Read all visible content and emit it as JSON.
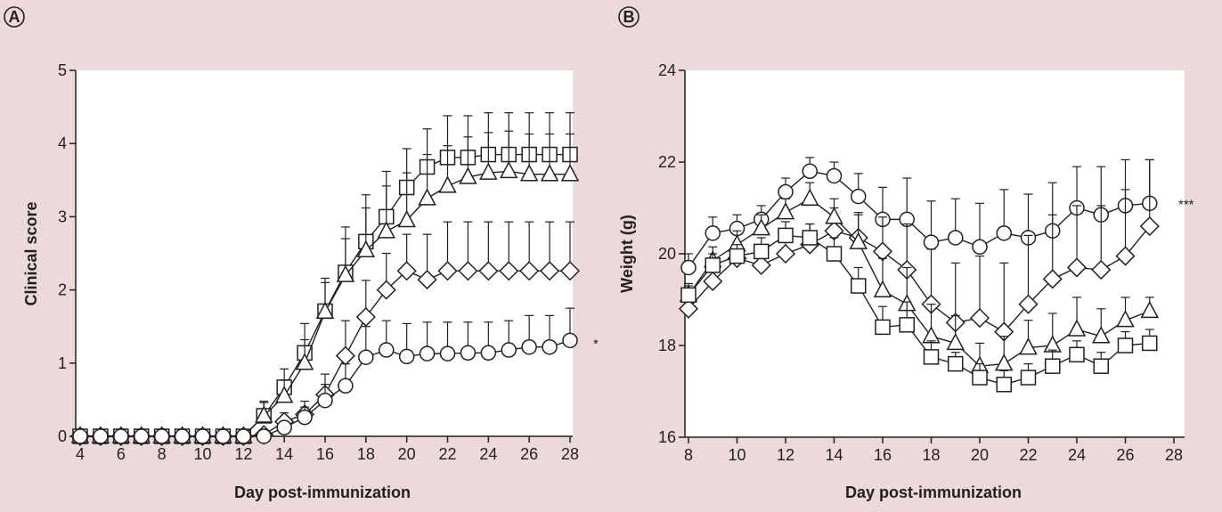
{
  "colors": {
    "background": "#ecd9d9",
    "plot_area": "#ffffff",
    "ink": "#231f20"
  },
  "chart_data": [
    {
      "panel": "A",
      "type": "line",
      "xlabel": "Day post-immunization",
      "ylabel": "Clinical score",
      "xlim": [
        4,
        28
      ],
      "ylim": [
        0,
        5
      ],
      "xticks": [
        4,
        6,
        8,
        10,
        12,
        14,
        16,
        18,
        20,
        22,
        24,
        26,
        28
      ],
      "yticks": [
        0,
        1,
        2,
        3,
        4,
        5
      ],
      "significance": "*",
      "significance_y": 1.28,
      "series": [
        {
          "marker": "square",
          "x": [
            4,
            5,
            6,
            7,
            8,
            9,
            10,
            11,
            12,
            13,
            14,
            15,
            16,
            17,
            18,
            19,
            20,
            21,
            22,
            23,
            24,
            25,
            26,
            27,
            28
          ],
          "y": [
            0,
            0,
            0,
            0,
            0,
            0,
            0,
            0,
            0,
            0.28,
            0.67,
            1.14,
            1.71,
            2.24,
            2.66,
            3.0,
            3.4,
            3.68,
            3.81,
            3.81,
            3.85,
            3.85,
            3.85,
            3.85,
            3.85
          ],
          "err": [
            0,
            0,
            0,
            0,
            0,
            0,
            0,
            0,
            0,
            0.2,
            0.25,
            0.4,
            0.45,
            0.62,
            0.64,
            0.62,
            0.53,
            0.52,
            0.57,
            0.57,
            0.57,
            0.57,
            0.57,
            0.57,
            0.57
          ]
        },
        {
          "marker": "triangle",
          "x": [
            4,
            5,
            6,
            7,
            8,
            9,
            10,
            11,
            12,
            13,
            14,
            15,
            16,
            17,
            18,
            19,
            20,
            21,
            22,
            23,
            24,
            25,
            26,
            27,
            28
          ],
          "y": [
            0,
            0,
            0,
            0,
            0,
            0,
            0,
            0,
            0,
            0.28,
            0.55,
            1.0,
            1.7,
            2.2,
            2.54,
            2.8,
            2.95,
            3.25,
            3.42,
            3.54,
            3.6,
            3.62,
            3.58,
            3.58,
            3.58
          ],
          "err": [
            0,
            0,
            0,
            0,
            0,
            0,
            0,
            0,
            0,
            0.18,
            0.22,
            0.32,
            0.4,
            0.5,
            0.58,
            0.62,
            0.65,
            0.6,
            0.55,
            0.55,
            0.55,
            0.55,
            0.55,
            0.55,
            0.55
          ]
        },
        {
          "marker": "diamond",
          "x": [
            4,
            5,
            6,
            7,
            8,
            9,
            10,
            11,
            12,
            13,
            14,
            15,
            16,
            17,
            18,
            19,
            20,
            21,
            22,
            23,
            24,
            25,
            26,
            27,
            28
          ],
          "y": [
            0,
            0,
            0,
            0,
            0,
            0,
            0,
            0,
            0,
            0.02,
            0.2,
            0.3,
            0.57,
            1.1,
            1.63,
            2.0,
            2.26,
            2.14,
            2.26,
            2.26,
            2.26,
            2.26,
            2.26,
            2.26,
            2.26
          ],
          "err": [
            0,
            0,
            0,
            0,
            0,
            0,
            0,
            0,
            0,
            0.03,
            0.12,
            0.18,
            0.28,
            0.48,
            0.5,
            0.5,
            0.5,
            0.62,
            0.67,
            0.67,
            0.67,
            0.67,
            0.67,
            0.67,
            0.67
          ]
        },
        {
          "marker": "circle",
          "x": [
            4,
            5,
            6,
            7,
            8,
            9,
            10,
            11,
            12,
            13,
            14,
            15,
            16,
            17,
            18,
            19,
            20,
            21,
            22,
            23,
            24,
            25,
            26,
            27,
            28
          ],
          "y": [
            0,
            0,
            0,
            0,
            0,
            0,
            0,
            0,
            0,
            0,
            0.12,
            0.26,
            0.49,
            0.69,
            1.08,
            1.18,
            1.09,
            1.13,
            1.13,
            1.14,
            1.14,
            1.18,
            1.22,
            1.22,
            1.31
          ],
          "err": [
            0,
            0,
            0,
            0,
            0,
            0,
            0,
            0,
            0,
            0,
            0.08,
            0.14,
            0.22,
            0.3,
            0.42,
            0.4,
            0.45,
            0.43,
            0.43,
            0.42,
            0.42,
            0.4,
            0.43,
            0.43,
            0.44
          ]
        }
      ]
    },
    {
      "panel": "B",
      "type": "line",
      "xlabel": "Day post-immunization",
      "ylabel": "Weight (g)",
      "xlim": [
        8,
        28
      ],
      "ylim": [
        16,
        24
      ],
      "xticks": [
        8,
        10,
        12,
        14,
        16,
        18,
        20,
        22,
        24,
        26,
        28
      ],
      "yticks": [
        16,
        18,
        20,
        22,
        24
      ],
      "significance": "***",
      "significance_y": 21.1,
      "series": [
        {
          "marker": "circle",
          "x": [
            8,
            9,
            10,
            11,
            12,
            13,
            14,
            15,
            16,
            17,
            18,
            19,
            20,
            21,
            22,
            23,
            24,
            25,
            26,
            27
          ],
          "y": [
            19.7,
            20.45,
            20.55,
            20.75,
            21.35,
            21.8,
            21.7,
            21.25,
            20.75,
            20.75,
            20.25,
            20.35,
            20.15,
            20.45,
            20.35,
            20.5,
            21.0,
            20.85,
            21.05,
            21.1
          ],
          "err": [
            0.3,
            0.35,
            0.3,
            0.3,
            0.3,
            0.3,
            0.3,
            0.5,
            0.7,
            0.9,
            0.9,
            0.85,
            0.95,
            0.95,
            0.95,
            1.05,
            0.9,
            1.05,
            1.0,
            0.95
          ]
        },
        {
          "marker": "diamond",
          "x": [
            8,
            9,
            10,
            11,
            12,
            13,
            14,
            15,
            16,
            17,
            18,
            19,
            20,
            21,
            22,
            23,
            24,
            25,
            26,
            27
          ],
          "y": [
            18.8,
            19.4,
            19.9,
            19.75,
            20.0,
            20.2,
            20.5,
            20.35,
            20.05,
            19.65,
            18.9,
            18.5,
            18.6,
            18.3,
            18.9,
            19.45,
            19.7,
            19.65,
            19.95,
            20.6
          ],
          "err": [
            0.25,
            0.35,
            0.35,
            0.35,
            0.4,
            0.45,
            0.5,
            0.55,
            0.75,
            1.0,
            1.2,
            1.3,
            1.35,
            1.5,
            1.5,
            1.4,
            1.35,
            1.4,
            1.45,
            1.45
          ]
        },
        {
          "marker": "triangle",
          "x": [
            8,
            9,
            10,
            11,
            12,
            13,
            14,
            15,
            16,
            17,
            18,
            19,
            20,
            21,
            22,
            23,
            24,
            25,
            26,
            27
          ],
          "y": [
            19.1,
            19.85,
            20.2,
            20.55,
            20.9,
            21.2,
            20.8,
            20.25,
            19.2,
            18.9,
            18.2,
            18.05,
            17.55,
            17.6,
            17.95,
            18.0,
            18.35,
            18.2,
            18.55,
            18.75
          ],
          "err": [
            0.25,
            0.3,
            0.3,
            0.3,
            0.3,
            0.35,
            0.4,
            0.6,
            0.7,
            0.8,
            0.7,
            0.6,
            0.5,
            0.6,
            0.6,
            0.7,
            0.7,
            0.6,
            0.5,
            0.3
          ]
        },
        {
          "marker": "square",
          "x": [
            8,
            9,
            10,
            11,
            12,
            13,
            14,
            15,
            16,
            17,
            18,
            19,
            20,
            21,
            22,
            23,
            24,
            25,
            26,
            27
          ],
          "y": [
            19.1,
            19.75,
            19.95,
            20.05,
            20.4,
            20.35,
            20.0,
            19.3,
            18.4,
            18.45,
            17.75,
            17.6,
            17.3,
            17.15,
            17.3,
            17.55,
            17.8,
            17.55,
            18.0,
            18.05
          ],
          "err": [
            0.2,
            0.25,
            0.25,
            0.3,
            0.3,
            0.3,
            0.35,
            0.4,
            0.45,
            0.5,
            0.35,
            0.25,
            0.3,
            0.3,
            0.3,
            0.35,
            0.3,
            0.3,
            0.3,
            0.3
          ]
        }
      ]
    }
  ]
}
